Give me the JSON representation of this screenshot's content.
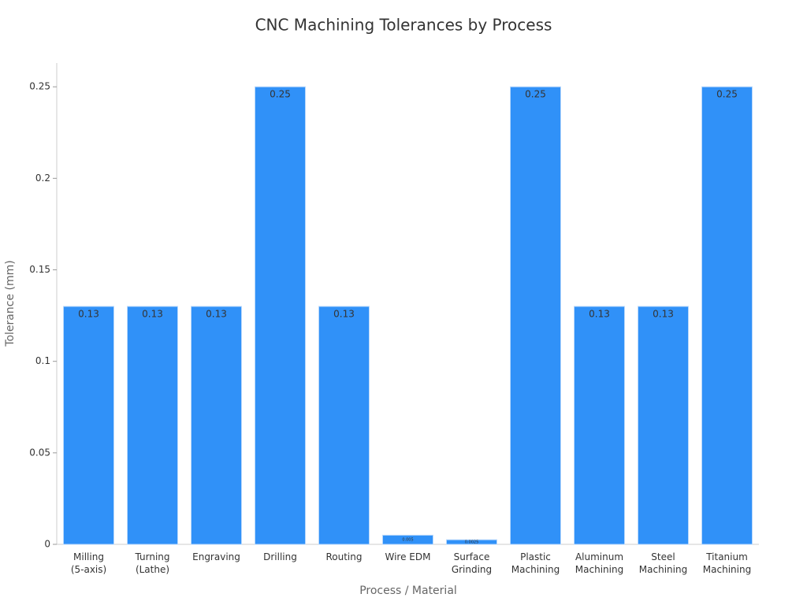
{
  "chart_data": {
    "type": "bar",
    "title": "CNC Machining Tolerances by Process",
    "x_label": "Process / Material",
    "y_label": "Tolerance (mm)",
    "categories": [
      "Milling\n(5-axis)",
      "Turning\n(Lathe)",
      "Engraving",
      "Drilling",
      "Routing",
      "Wire EDM",
      "Surface\nGrinding",
      "Plastic\nMachining",
      "Aluminum\nMachining",
      "Steel\nMachining",
      "Titanium\nMachining"
    ],
    "values": [
      0.13,
      0.13,
      0.13,
      0.25,
      0.13,
      0.005,
      0.0025,
      0.25,
      0.13,
      0.13,
      0.25
    ],
    "color": "#3091f8",
    "ylim": [
      0,
      0.263
    ],
    "yticks": [
      0,
      0.05,
      0.1,
      0.15,
      0.2,
      0.25
    ],
    "grid": false
  }
}
